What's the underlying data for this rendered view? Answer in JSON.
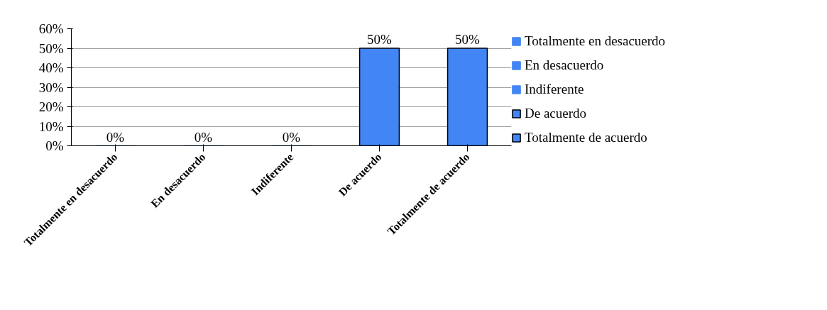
{
  "chart_data": {
    "type": "bar",
    "categories": [
      "Totalmente en desacuerdo",
      "En desacuerdo",
      "Indiferente",
      "De acuerdo",
      "Totalmente de acuerdo"
    ],
    "series": [
      {
        "name": "Totalmente en desacuerdo",
        "color": "#4285f4",
        "values": [
          0,
          null,
          null,
          null,
          null
        ],
        "value_labels": [
          "0%",
          null,
          null,
          null,
          null
        ]
      },
      {
        "name": "En desacuerdo",
        "color": "#4285f4",
        "values": [
          null,
          0,
          null,
          null,
          null
        ],
        "value_labels": [
          null,
          "0%",
          null,
          null,
          null
        ]
      },
      {
        "name": "Indiferente",
        "color": "#4285f4",
        "values": [
          null,
          null,
          0,
          null,
          null
        ],
        "value_labels": [
          null,
          null,
          "0%",
          null,
          null
        ]
      },
      {
        "name": "De acuerdo",
        "color": "#4285f4",
        "values": [
          null,
          null,
          null,
          50,
          null
        ],
        "value_labels": [
          null,
          null,
          null,
          "50%",
          null
        ]
      },
      {
        "name": "Totalmente de acuerdo",
        "color": "#4285f4",
        "values": [
          null,
          null,
          null,
          null,
          50
        ],
        "value_labels": [
          null,
          null,
          null,
          null,
          "50%"
        ]
      }
    ],
    "ylim": [
      0,
      60
    ],
    "yticks": [
      {
        "value": 0,
        "label": "0%"
      },
      {
        "value": 10,
        "label": "10%"
      },
      {
        "value": 20,
        "label": "20%"
      },
      {
        "value": 30,
        "label": "30%"
      },
      {
        "value": 40,
        "label": "40%"
      },
      {
        "value": 50,
        "label": "50%"
      },
      {
        "value": 60,
        "label": "60%"
      }
    ],
    "grid": "y",
    "legend": "right"
  }
}
